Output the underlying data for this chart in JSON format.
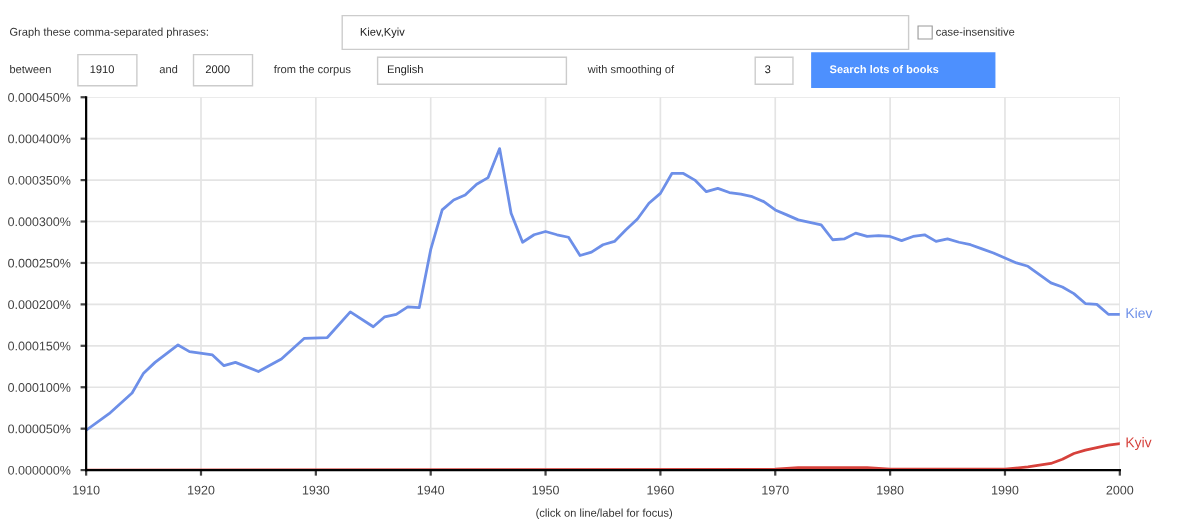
{
  "chart_data": {
    "type": "line",
    "annotations": [
      "Graph these comma-separated phrases:",
      "Kiev,Kyiv",
      "case-insensitive",
      "between",
      "1910",
      "and",
      "2000",
      "from the corpus",
      "English",
      "with smoothing of",
      "3",
      "Search lots of books",
      "(click on line/label for focus)"
    ],
    "xlim": [
      1910,
      2000
    ],
    "xticks": [
      1910,
      1920,
      1930,
      1940,
      1950,
      1960,
      1970,
      1980,
      1990,
      2000
    ],
    "ylim": [
      0,
      0.00045
    ],
    "yticks": [
      {
        "value": 0,
        "label": "0.000000%"
      },
      {
        "value": 5e-05,
        "label": "0.000050%"
      },
      {
        "value": 0.0001,
        "label": "0.000100%"
      },
      {
        "value": 0.00015,
        "label": "0.000150%"
      },
      {
        "value": 0.0002,
        "label": "0.000200%"
      },
      {
        "value": 0.00025,
        "label": "0.000250%"
      },
      {
        "value": 0.0003,
        "label": "0.000300%"
      },
      {
        "value": 0.00035,
        "label": "0.000350%"
      },
      {
        "value": 0.0004,
        "label": "0.000400%"
      },
      {
        "value": 0.00045,
        "label": "0.000450%"
      }
    ],
    "grid": true,
    "legend": false,
    "marker": "none",
    "line_style": "solid",
    "series": [
      {
        "name": "Kiev",
        "color": "#6d8fe8",
        "x": [
          1910,
          1912,
          1914,
          1915,
          1916,
          1918,
          1919,
          1921,
          1922,
          1923,
          1925,
          1927,
          1929,
          1931,
          1933,
          1935,
          1936,
          1937,
          1938,
          1939,
          1940,
          1941,
          1942,
          1943,
          1944,
          1945,
          1946,
          1947,
          1948,
          1949,
          1950,
          1951,
          1952,
          1953,
          1954,
          1955,
          1956,
          1957,
          1958,
          1959,
          1960,
          1961,
          1962,
          1963,
          1964,
          1965,
          1966,
          1967,
          1968,
          1969,
          1970,
          1971,
          1972,
          1973,
          1974,
          1975,
          1976,
          1977,
          1978,
          1979,
          1980,
          1981,
          1982,
          1983,
          1984,
          1985,
          1986,
          1987,
          1988,
          1989,
          1990,
          1991,
          1992,
          1993,
          1994,
          1995,
          1996,
          1997,
          1998,
          1999,
          2000
        ],
        "values": [
          4.8e-05,
          6.8e-05,
          9.3e-05,
          0.000117,
          0.00013,
          0.000151,
          0.000143,
          0.000139,
          0.000126,
          0.00013,
          0.000119,
          0.000134,
          0.000159,
          0.00016,
          0.000191,
          0.000173,
          0.000185,
          0.000188,
          0.000197,
          0.000196,
          0.000266,
          0.000314,
          0.000326,
          0.000332,
          0.000345,
          0.000353,
          0.000388,
          0.00031,
          0.000275,
          0.000284,
          0.000288,
          0.000284,
          0.000281,
          0.000259,
          0.000263,
          0.000272,
          0.000276,
          0.00029,
          0.000303,
          0.000322,
          0.000334,
          0.000358,
          0.000358,
          0.00035,
          0.000336,
          0.00034,
          0.000335,
          0.000333,
          0.00033,
          0.000324,
          0.000314,
          0.000308,
          0.000302,
          0.000299,
          0.000296,
          0.000278,
          0.000279,
          0.000286,
          0.000282,
          0.000283,
          0.000282,
          0.000277,
          0.000282,
          0.000284,
          0.000276,
          0.000279,
          0.000275,
          0.000272,
          0.000267,
          0.000262,
          0.000256,
          0.00025,
          0.000246,
          0.000236,
          0.000226,
          0.000221,
          0.000213,
          0.000201,
          0.0002,
          0.000188,
          0.000188
        ]
      },
      {
        "name": "Kyiv",
        "color": "#d6413b",
        "x": [
          1910,
          1970,
          1972,
          1978,
          1980,
          1990,
          1992,
          1994,
          1995,
          1996,
          1997,
          1998,
          1999,
          2000
        ],
        "values": [
          0,
          1e-06,
          3e-06,
          3e-06,
          1e-06,
          1e-06,
          4e-06,
          8e-06,
          1.3e-05,
          2e-05,
          2.4e-05,
          2.7e-05,
          3e-05,
          3.2e-05
        ]
      }
    ]
  }
}
